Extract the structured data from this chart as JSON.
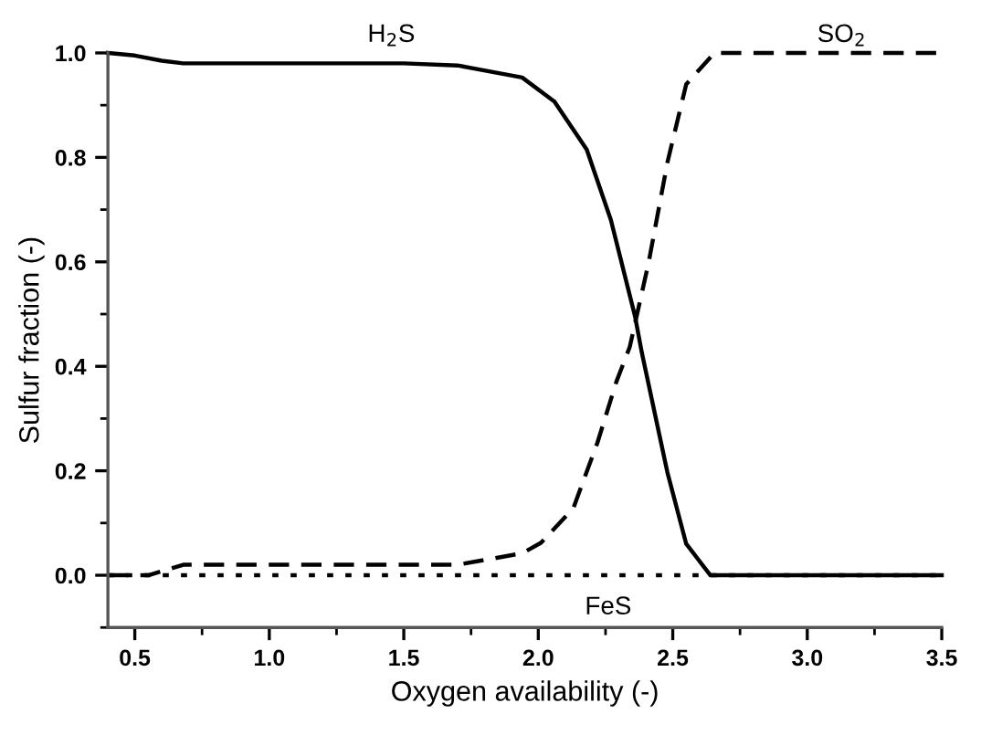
{
  "chart_data": {
    "type": "line",
    "xlabel": "Oxygen availability (-)",
    "ylabel": "Sulfur fraction (-)",
    "xlim": [
      0.4,
      3.5
    ],
    "ylim": [
      -0.1,
      1.0
    ],
    "xticks": [
      0.5,
      {
        "value": 1,
        "label": "1.0"
      },
      1.5,
      {
        "value": 2,
        "label": "2.0"
      },
      2.5,
      {
        "value": 3,
        "label": "3.0"
      },
      3.5
    ],
    "yticks": [
      {
        "value": 0,
        "label": "0.0"
      },
      0.2,
      0.4,
      0.6,
      0.8,
      {
        "value": 1,
        "label": "1.0"
      }
    ],
    "grid": false,
    "legend": false,
    "marker": "none",
    "series": [
      {
        "name": "H$_{2}$S",
        "color": "#000000",
        "line_style": "solid",
        "x": [
          0.4,
          0.5,
          0.6,
          0.68,
          1.0,
          1.5,
          1.7,
          1.94,
          2.06,
          2.18,
          2.27,
          2.36,
          2.385,
          2.48,
          2.55,
          2.64,
          3.0,
          3.5
        ],
        "values": [
          1.0,
          0.995,
          0.985,
          0.98,
          0.98,
          0.98,
          0.976,
          0.953,
          0.907,
          0.815,
          0.68,
          0.495,
          0.426,
          0.197,
          0.06,
          0.0,
          0.0,
          0.0
        ]
      },
      {
        "name": "SO$_{2}$",
        "color": "#000000",
        "line_style": "dashed",
        "x": [
          0.4,
          0.55,
          0.68,
          1.0,
          1.5,
          1.7,
          1.94,
          2.01,
          2.13,
          2.22,
          2.29,
          2.34,
          2.41,
          2.48,
          2.55,
          2.655,
          3.0,
          3.5
        ],
        "values": [
          0.0,
          0.0,
          0.02,
          0.02,
          0.02,
          0.02,
          0.042,
          0.062,
          0.128,
          0.254,
          0.37,
          0.437,
          0.598,
          0.79,
          0.94,
          1.0,
          1.0,
          1.0
        ]
      },
      {
        "name": "FeS",
        "color": "#000000",
        "line_style": "dotted",
        "x": [
          0.4,
          3.5
        ],
        "values": [
          0.0,
          0.0
        ]
      }
    ]
  }
}
